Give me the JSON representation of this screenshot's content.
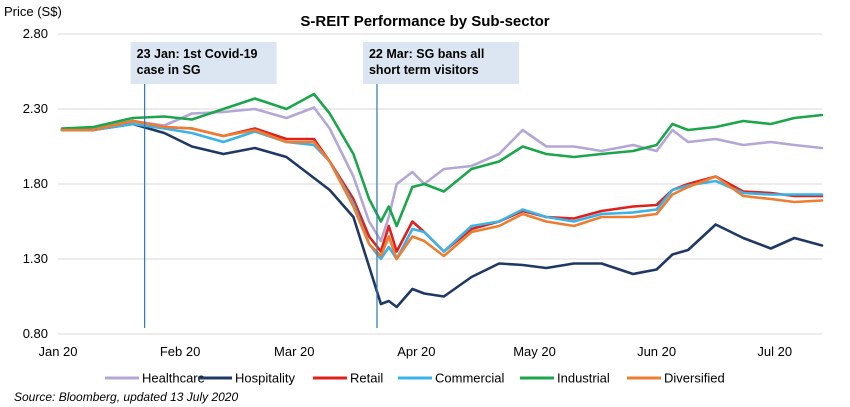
{
  "chart_data": {
    "type": "line",
    "title": "S-REIT Performance by Sub-sector",
    "ylabel": "Price (S$)",
    "xlabel": "",
    "ylim": [
      0.8,
      2.8
    ],
    "yticks": [
      "0.80",
      "1.30",
      "1.80",
      "2.30",
      "2.80"
    ],
    "ytick_values": [
      0.8,
      1.3,
      1.8,
      2.3,
      2.8
    ],
    "xticks": [
      {
        "label": "Jan 20",
        "date": "2020-01-01"
      },
      {
        "label": "Feb 20",
        "date": "2020-02-01"
      },
      {
        "label": "Mar 20",
        "date": "2020-03-01"
      },
      {
        "label": "Apr 20",
        "date": "2020-04-01"
      },
      {
        "label": "May 20",
        "date": "2020-05-01"
      },
      {
        "label": "Jun 20",
        "date": "2020-06-01"
      },
      {
        "label": "Jul 20",
        "date": "2020-07-01"
      }
    ],
    "xlim": [
      "2020-01-01",
      "2020-07-13"
    ],
    "grid": true,
    "legend_position": "bottom",
    "series": [
      {
        "name": "Healthcare",
        "color": "#b4a7d6",
        "points": [
          [
            "2020-01-02",
            2.16
          ],
          [
            "2020-01-10",
            2.17
          ],
          [
            "2020-01-20",
            2.22
          ],
          [
            "2020-01-28",
            2.19
          ],
          [
            "2020-02-04",
            2.27
          ],
          [
            "2020-02-12",
            2.28
          ],
          [
            "2020-02-20",
            2.3
          ],
          [
            "2020-02-28",
            2.24
          ],
          [
            "2020-03-06",
            2.31
          ],
          [
            "2020-03-10",
            2.17
          ],
          [
            "2020-03-16",
            1.85
          ],
          [
            "2020-03-20",
            1.55
          ],
          [
            "2020-03-23",
            1.42
          ],
          [
            "2020-03-25",
            1.58
          ],
          [
            "2020-03-27",
            1.8
          ],
          [
            "2020-03-31",
            1.88
          ],
          [
            "2020-04-03",
            1.8
          ],
          [
            "2020-04-08",
            1.9
          ],
          [
            "2020-04-15",
            1.92
          ],
          [
            "2020-04-22",
            2.0
          ],
          [
            "2020-04-28",
            2.16
          ],
          [
            "2020-05-04",
            2.05
          ],
          [
            "2020-05-11",
            2.05
          ],
          [
            "2020-05-18",
            2.02
          ],
          [
            "2020-05-26",
            2.06
          ],
          [
            "2020-06-01",
            2.02
          ],
          [
            "2020-06-05",
            2.16
          ],
          [
            "2020-06-09",
            2.08
          ],
          [
            "2020-06-16",
            2.1
          ],
          [
            "2020-06-23",
            2.06
          ],
          [
            "2020-06-30",
            2.08
          ],
          [
            "2020-07-06",
            2.06
          ],
          [
            "2020-07-13",
            2.04
          ]
        ]
      },
      {
        "name": "Hospitality",
        "color": "#1f3864",
        "points": [
          [
            "2020-01-02",
            2.16
          ],
          [
            "2020-01-10",
            2.16
          ],
          [
            "2020-01-20",
            2.2
          ],
          [
            "2020-01-28",
            2.14
          ],
          [
            "2020-02-04",
            2.05
          ],
          [
            "2020-02-12",
            2.0
          ],
          [
            "2020-02-20",
            2.04
          ],
          [
            "2020-02-28",
            1.98
          ],
          [
            "2020-03-06",
            1.84
          ],
          [
            "2020-03-10",
            1.76
          ],
          [
            "2020-03-16",
            1.58
          ],
          [
            "2020-03-20",
            1.25
          ],
          [
            "2020-03-23",
            1.0
          ],
          [
            "2020-03-25",
            1.02
          ],
          [
            "2020-03-27",
            0.98
          ],
          [
            "2020-03-31",
            1.1
          ],
          [
            "2020-04-03",
            1.07
          ],
          [
            "2020-04-08",
            1.05
          ],
          [
            "2020-04-15",
            1.18
          ],
          [
            "2020-04-22",
            1.27
          ],
          [
            "2020-04-28",
            1.26
          ],
          [
            "2020-05-04",
            1.24
          ],
          [
            "2020-05-11",
            1.27
          ],
          [
            "2020-05-18",
            1.27
          ],
          [
            "2020-05-26",
            1.2
          ],
          [
            "2020-06-01",
            1.23
          ],
          [
            "2020-06-05",
            1.33
          ],
          [
            "2020-06-09",
            1.36
          ],
          [
            "2020-06-16",
            1.53
          ],
          [
            "2020-06-23",
            1.44
          ],
          [
            "2020-06-30",
            1.37
          ],
          [
            "2020-07-06",
            1.44
          ],
          [
            "2020-07-13",
            1.39
          ]
        ]
      },
      {
        "name": "Retail",
        "color": "#e0201b",
        "points": [
          [
            "2020-01-02",
            2.16
          ],
          [
            "2020-01-10",
            2.16
          ],
          [
            "2020-01-20",
            2.22
          ],
          [
            "2020-01-28",
            2.18
          ],
          [
            "2020-02-04",
            2.17
          ],
          [
            "2020-02-12",
            2.12
          ],
          [
            "2020-02-20",
            2.17
          ],
          [
            "2020-02-28",
            2.1
          ],
          [
            "2020-03-06",
            2.1
          ],
          [
            "2020-03-10",
            1.95
          ],
          [
            "2020-03-16",
            1.7
          ],
          [
            "2020-03-20",
            1.45
          ],
          [
            "2020-03-23",
            1.35
          ],
          [
            "2020-03-25",
            1.52
          ],
          [
            "2020-03-27",
            1.35
          ],
          [
            "2020-03-31",
            1.55
          ],
          [
            "2020-04-03",
            1.48
          ],
          [
            "2020-04-08",
            1.35
          ],
          [
            "2020-04-15",
            1.5
          ],
          [
            "2020-04-22",
            1.55
          ],
          [
            "2020-04-28",
            1.62
          ],
          [
            "2020-05-04",
            1.58
          ],
          [
            "2020-05-11",
            1.57
          ],
          [
            "2020-05-18",
            1.62
          ],
          [
            "2020-05-26",
            1.65
          ],
          [
            "2020-06-01",
            1.66
          ],
          [
            "2020-06-05",
            1.76
          ],
          [
            "2020-06-09",
            1.8
          ],
          [
            "2020-06-16",
            1.85
          ],
          [
            "2020-06-23",
            1.75
          ],
          [
            "2020-06-30",
            1.74
          ],
          [
            "2020-07-06",
            1.72
          ],
          [
            "2020-07-13",
            1.72
          ]
        ]
      },
      {
        "name": "Commercial",
        "color": "#3ab3e8",
        "points": [
          [
            "2020-01-02",
            2.16
          ],
          [
            "2020-01-10",
            2.16
          ],
          [
            "2020-01-20",
            2.2
          ],
          [
            "2020-01-28",
            2.17
          ],
          [
            "2020-02-04",
            2.14
          ],
          [
            "2020-02-12",
            2.08
          ],
          [
            "2020-02-20",
            2.15
          ],
          [
            "2020-02-28",
            2.08
          ],
          [
            "2020-03-06",
            2.06
          ],
          [
            "2020-03-10",
            1.95
          ],
          [
            "2020-03-16",
            1.67
          ],
          [
            "2020-03-20",
            1.4
          ],
          [
            "2020-03-23",
            1.3
          ],
          [
            "2020-03-25",
            1.38
          ],
          [
            "2020-03-27",
            1.3
          ],
          [
            "2020-03-31",
            1.5
          ],
          [
            "2020-04-03",
            1.48
          ],
          [
            "2020-04-08",
            1.35
          ],
          [
            "2020-04-15",
            1.52
          ],
          [
            "2020-04-22",
            1.55
          ],
          [
            "2020-04-28",
            1.63
          ],
          [
            "2020-05-04",
            1.58
          ],
          [
            "2020-05-11",
            1.55
          ],
          [
            "2020-05-18",
            1.6
          ],
          [
            "2020-05-26",
            1.61
          ],
          [
            "2020-06-01",
            1.63
          ],
          [
            "2020-06-05",
            1.76
          ],
          [
            "2020-06-09",
            1.79
          ],
          [
            "2020-06-16",
            1.82
          ],
          [
            "2020-06-23",
            1.74
          ],
          [
            "2020-06-30",
            1.73
          ],
          [
            "2020-07-06",
            1.73
          ],
          [
            "2020-07-13",
            1.73
          ]
        ]
      },
      {
        "name": "Industrial",
        "color": "#1ca64c",
        "points": [
          [
            "2020-01-02",
            2.17
          ],
          [
            "2020-01-10",
            2.18
          ],
          [
            "2020-01-20",
            2.24
          ],
          [
            "2020-01-28",
            2.25
          ],
          [
            "2020-02-04",
            2.23
          ],
          [
            "2020-02-12",
            2.3
          ],
          [
            "2020-02-20",
            2.37
          ],
          [
            "2020-02-28",
            2.3
          ],
          [
            "2020-03-06",
            2.4
          ],
          [
            "2020-03-10",
            2.27
          ],
          [
            "2020-03-16",
            2.0
          ],
          [
            "2020-03-20",
            1.7
          ],
          [
            "2020-03-23",
            1.55
          ],
          [
            "2020-03-25",
            1.65
          ],
          [
            "2020-03-27",
            1.52
          ],
          [
            "2020-03-31",
            1.78
          ],
          [
            "2020-04-03",
            1.8
          ],
          [
            "2020-04-08",
            1.75
          ],
          [
            "2020-04-15",
            1.9
          ],
          [
            "2020-04-22",
            1.95
          ],
          [
            "2020-04-28",
            2.05
          ],
          [
            "2020-05-04",
            2.0
          ],
          [
            "2020-05-11",
            1.98
          ],
          [
            "2020-05-18",
            2.0
          ],
          [
            "2020-05-26",
            2.02
          ],
          [
            "2020-06-01",
            2.06
          ],
          [
            "2020-06-05",
            2.2
          ],
          [
            "2020-06-09",
            2.16
          ],
          [
            "2020-06-16",
            2.18
          ],
          [
            "2020-06-23",
            2.22
          ],
          [
            "2020-06-30",
            2.2
          ],
          [
            "2020-07-06",
            2.24
          ],
          [
            "2020-07-13",
            2.26
          ]
        ]
      },
      {
        "name": "Diversified",
        "color": "#ed7d31",
        "points": [
          [
            "2020-01-02",
            2.16
          ],
          [
            "2020-01-10",
            2.16
          ],
          [
            "2020-01-20",
            2.22
          ],
          [
            "2020-01-28",
            2.18
          ],
          [
            "2020-02-04",
            2.17
          ],
          [
            "2020-02-12",
            2.12
          ],
          [
            "2020-02-20",
            2.16
          ],
          [
            "2020-02-28",
            2.08
          ],
          [
            "2020-03-06",
            2.08
          ],
          [
            "2020-03-10",
            1.95
          ],
          [
            "2020-03-16",
            1.65
          ],
          [
            "2020-03-20",
            1.4
          ],
          [
            "2020-03-23",
            1.32
          ],
          [
            "2020-03-25",
            1.45
          ],
          [
            "2020-03-27",
            1.3
          ],
          [
            "2020-03-31",
            1.45
          ],
          [
            "2020-04-03",
            1.42
          ],
          [
            "2020-04-08",
            1.32
          ],
          [
            "2020-04-15",
            1.48
          ],
          [
            "2020-04-22",
            1.52
          ],
          [
            "2020-04-28",
            1.6
          ],
          [
            "2020-05-04",
            1.55
          ],
          [
            "2020-05-11",
            1.52
          ],
          [
            "2020-05-18",
            1.58
          ],
          [
            "2020-05-26",
            1.58
          ],
          [
            "2020-06-01",
            1.6
          ],
          [
            "2020-06-05",
            1.73
          ],
          [
            "2020-06-09",
            1.78
          ],
          [
            "2020-06-16",
            1.85
          ],
          [
            "2020-06-23",
            1.72
          ],
          [
            "2020-06-30",
            1.7
          ],
          [
            "2020-07-06",
            1.68
          ],
          [
            "2020-07-13",
            1.69
          ]
        ]
      }
    ],
    "annotations": [
      {
        "date": "2020-01-23",
        "lines": [
          "23 Jan: 1st Covid-19",
          "case in SG"
        ]
      },
      {
        "date": "2020-03-22",
        "lines": [
          "22 Mar: SG bans all",
          "short term visitors"
        ]
      }
    ],
    "source": "Source: Bloomberg, updated 13 July 2020"
  }
}
